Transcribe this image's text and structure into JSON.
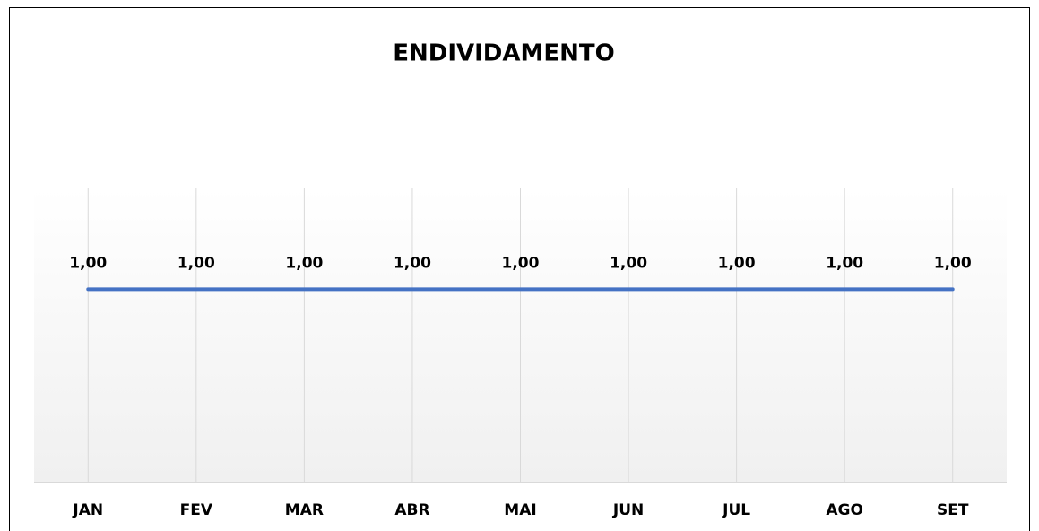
{
  "chart_data": {
    "type": "line",
    "title": "ENDIVIDAMENTO",
    "categories": [
      "JAN",
      "FEV",
      "MAR",
      "ABR",
      "MAI",
      "JUN",
      "JUL",
      "AGO",
      "SET"
    ],
    "series": [
      {
        "name": "ENDIVIDAMENTO",
        "color": "#4472c4",
        "values": [
          1,
          1,
          1,
          1,
          1,
          1,
          1,
          1,
          1
        ],
        "value_labels": [
          "1,00",
          "1,00",
          "1,00",
          "1,00",
          "1,00",
          "1,00",
          "1,00",
          "1,00",
          "1,00"
        ]
      }
    ],
    "ylim": [
      0,
      1.5
    ],
    "grid": true
  }
}
